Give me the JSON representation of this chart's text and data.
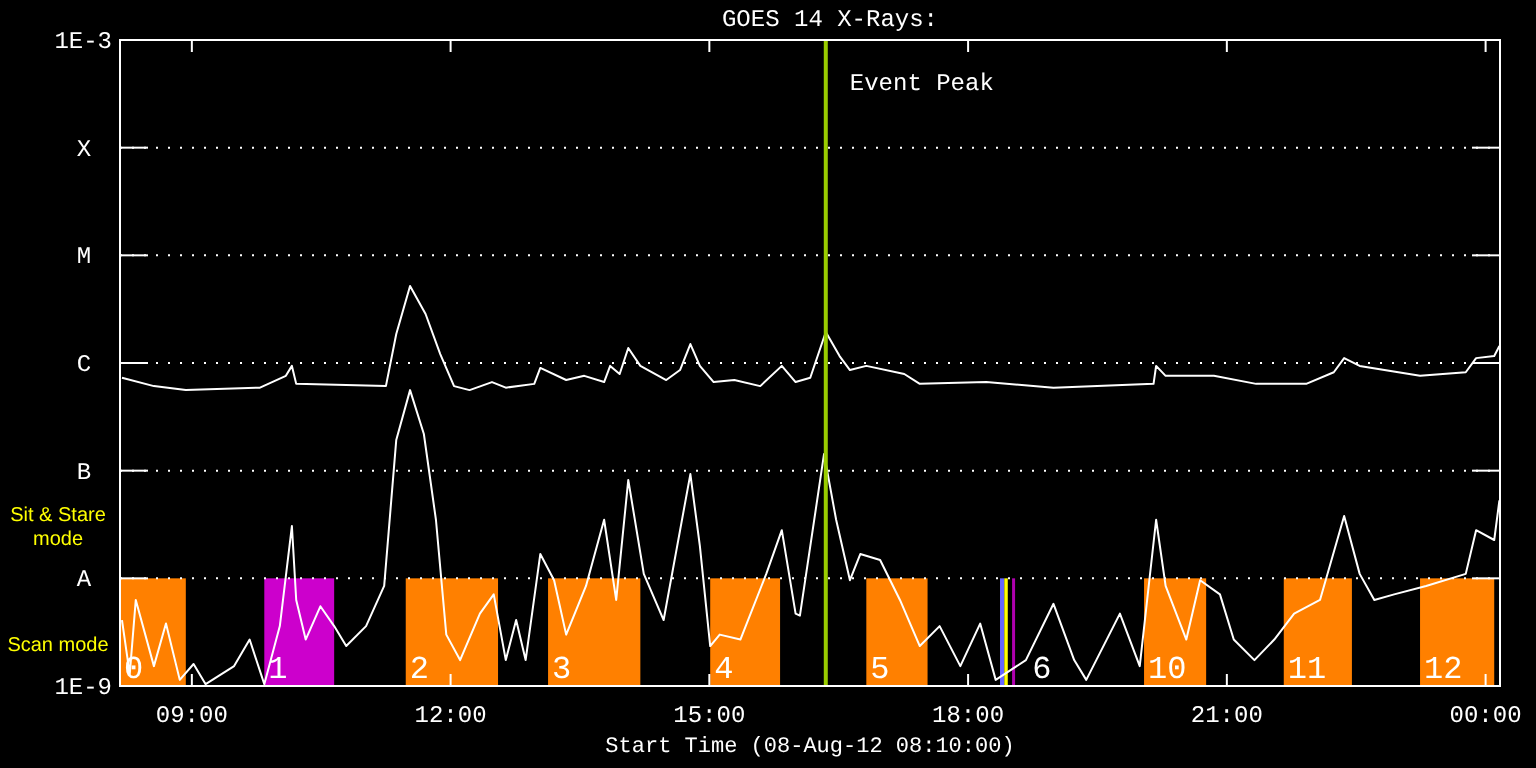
{
  "chart_data": {
    "type": "line",
    "title": "GOES 14 X-Rays:",
    "xlabel": "Start Time (08-Aug-12 08:10:00)",
    "log": "y",
    "grid": "y",
    "marker": "none",
    "line_style": "solid",
    "xlim": [
      8.167,
      24.167
    ],
    "xticks": [
      {
        "value": 9,
        "label": "09:00"
      },
      {
        "value": 12,
        "label": "12:00"
      },
      {
        "value": 15,
        "label": "15:00"
      },
      {
        "value": 18,
        "label": "18:00"
      },
      {
        "value": 21,
        "label": "21:00"
      },
      {
        "value": 24,
        "label": "00:00"
      }
    ],
    "ylim": [
      1e-09,
      0.001
    ],
    "yticks": [
      {
        "value": 1e-09,
        "label": "1E-9"
      },
      {
        "value": 1e-08,
        "label": "A"
      },
      {
        "value": 1e-07,
        "label": "B"
      },
      {
        "value": 1e-06,
        "label": "C"
      },
      {
        "value": 1e-05,
        "label": "M"
      },
      {
        "value": 0.0001,
        "label": "X"
      },
      {
        "value": 0.001,
        "label": "1E-3"
      }
    ],
    "series": [
      {
        "color": "#ffffff",
        "x": [
          8.19,
          8.56,
          8.93,
          9.79,
          10.09,
          10.16,
          10.21,
          11.25,
          11.37,
          11.53,
          11.71,
          11.88,
          12.04,
          12.22,
          12.48,
          12.64,
          12.97,
          13.04,
          13.34,
          13.55,
          13.78,
          13.85,
          13.96,
          14.06,
          14.2,
          14.5,
          14.66,
          14.78,
          14.89,
          15.05,
          15.29,
          15.59,
          15.84,
          16.0,
          16.17,
          16.35,
          16.51,
          16.63,
          16.82,
          17.26,
          17.44,
          18.21,
          18.99,
          20.15,
          20.18,
          20.29,
          20.85,
          21.34,
          21.92,
          22.24,
          22.36,
          22.54,
          23.24,
          23.77,
          23.89,
          24.1,
          24.16
        ],
        "values": [
          7.3e-07,
          6.1e-07,
          5.6e-07,
          5.9e-07,
          7.6e-07,
          9.4e-07,
          6.4e-07,
          6.1e-07,
          1.86e-06,
          5.19e-06,
          2.85e-06,
          1.21e-06,
          6.1e-07,
          5.6e-07,
          6.65e-07,
          5.9e-07,
          6.4e-07,
          9e-07,
          6.95e-07,
          7.6e-07,
          6.65e-07,
          9.4e-07,
          7.9e-07,
          1.38e-06,
          9.4e-07,
          6.95e-07,
          8.6e-07,
          1.5e-06,
          9.4e-07,
          6.65e-07,
          6.95e-07,
          6.1e-07,
          9.4e-07,
          6.65e-07,
          7.3e-07,
          1.94e-06,
          1.16e-06,
          8.6e-07,
          9.4e-07,
          7.9e-07,
          6.4e-07,
          6.65e-07,
          5.9e-07,
          6.4e-07,
          9.4e-07,
          7.6e-07,
          7.6e-07,
          6.4e-07,
          6.4e-07,
          8.2e-07,
          1.11e-06,
          9.4e-07,
          7.6e-07,
          8.2e-07,
          1.11e-06,
          1.16e-06,
          1.44e-06
        ]
      },
      {
        "color": "#ffffff",
        "x": [
          8.19,
          8.28,
          8.35,
          8.56,
          8.7,
          8.86,
          9.02,
          9.16,
          9.49,
          9.67,
          9.84,
          10.02,
          10.16,
          10.21,
          10.32,
          10.49,
          10.65,
          10.79,
          11.02,
          11.23,
          11.37,
          11.53,
          11.69,
          11.83,
          11.95,
          12.11,
          12.34,
          12.5,
          12.64,
          12.76,
          12.87,
          13.04,
          13.2,
          13.34,
          13.57,
          13.78,
          13.92,
          14.06,
          14.24,
          14.47,
          14.78,
          14.89,
          15.01,
          15.12,
          15.36,
          15.66,
          15.84,
          16.0,
          16.05,
          16.33,
          16.47,
          16.63,
          16.75,
          16.98,
          17.21,
          17.44,
          17.67,
          17.91,
          18.14,
          18.32,
          18.67,
          18.99,
          19.23,
          19.37,
          19.76,
          19.99,
          20.18,
          20.29,
          20.53,
          20.69,
          20.92,
          21.08,
          21.32,
          21.55,
          21.78,
          22.08,
          22.36,
          22.54,
          22.71,
          22.94,
          23.31,
          23.77,
          23.89,
          24.1,
          24.16
        ],
        "values": [
          4.1e-09,
          1.29e-09,
          6.3e-09,
          1.53e-09,
          3.8e-09,
          1.14e-09,
          1.6e-09,
          1.04e-09,
          1.53e-09,
          2.7e-09,
          1.04e-09,
          3.6e-09,
          3.06e-08,
          6.3e-09,
          2.7e-09,
          5.5e-09,
          3.6e-09,
          2.35e-09,
          3.6e-09,
          8.5e-09,
          1.93e-07,
          5.6e-07,
          2.19e-07,
          3.5e-08,
          3e-09,
          1.74e-09,
          4.7e-09,
          7.1e-09,
          1.74e-09,
          4.1e-09,
          1.74e-09,
          1.68e-08,
          9.6e-09,
          3e-09,
          8.5e-09,
          3.5e-08,
          6.3e-09,
          8.2e-08,
          1.1e-08,
          4.1e-09,
          9.3e-08,
          2e-08,
          2.35e-09,
          3e-09,
          2.7e-09,
          1.1e-08,
          2.8e-08,
          4.7e-09,
          4.5e-09,
          1.43e-07,
          3.5e-08,
          9.6e-09,
          1.68e-08,
          1.48e-08,
          6.3e-09,
          2.35e-09,
          3.6e-09,
          1.53e-09,
          3.8e-09,
          1.14e-09,
          1.74e-09,
          5.8e-09,
          1.74e-09,
          1.14e-09,
          4.7e-09,
          1.53e-09,
          3.5e-08,
          8.5e-09,
          2.7e-09,
          9.6e-09,
          7.1e-09,
          2.7e-09,
          1.74e-09,
          2.7e-09,
          4.7e-09,
          6.3e-09,
          3.8e-08,
          1.1e-08,
          6.3e-09,
          7.1e-09,
          8.5e-09,
          1.1e-08,
          2.8e-08,
          2.27e-08,
          5.3e-08
        ]
      }
    ],
    "ref_lines": [
      {
        "axis": "x",
        "value": 16.35,
        "label": "Event Peak",
        "color": "#99cc00"
      }
    ],
    "bands": [
      {
        "axis": "x",
        "from": 8.167,
        "to": 8.93,
        "label": "0",
        "color": "#ff8000"
      },
      {
        "axis": "x",
        "from": 9.84,
        "to": 10.65,
        "label": "1",
        "color": "#cc00cc"
      },
      {
        "axis": "x",
        "from": 11.48,
        "to": 12.55,
        "label": "2",
        "color": "#ff8000"
      },
      {
        "axis": "x",
        "from": 13.13,
        "to": 14.2,
        "label": "3",
        "color": "#ff8000"
      },
      {
        "axis": "x",
        "from": 15.01,
        "to": 15.82,
        "label": "4",
        "color": "#ff8000"
      },
      {
        "axis": "x",
        "from": 16.82,
        "to": 17.53,
        "label": "5",
        "color": "#ff8000"
      },
      {
        "axis": "x",
        "from": 18.37,
        "to": 18.42,
        "label": "6",
        "color": "#6666ff"
      },
      {
        "axis": "x",
        "from": 18.42,
        "to": 18.46,
        "label": null,
        "color": "#ffff00"
      },
      {
        "axis": "x",
        "from": 18.51,
        "to": 18.53,
        "label": null,
        "color": "#b000b0"
      },
      {
        "axis": "x",
        "from": 20.04,
        "to": 20.76,
        "label": "10",
        "color": "#ff8000"
      },
      {
        "axis": "x",
        "from": 21.66,
        "to": 22.45,
        "label": "11",
        "color": "#ff8000"
      },
      {
        "axis": "x",
        "from": 23.24,
        "to": 24.1,
        "label": "12",
        "color": "#ff8000"
      }
    ],
    "annotations": [
      "Sit & Stare mode",
      "Scan mode"
    ]
  }
}
